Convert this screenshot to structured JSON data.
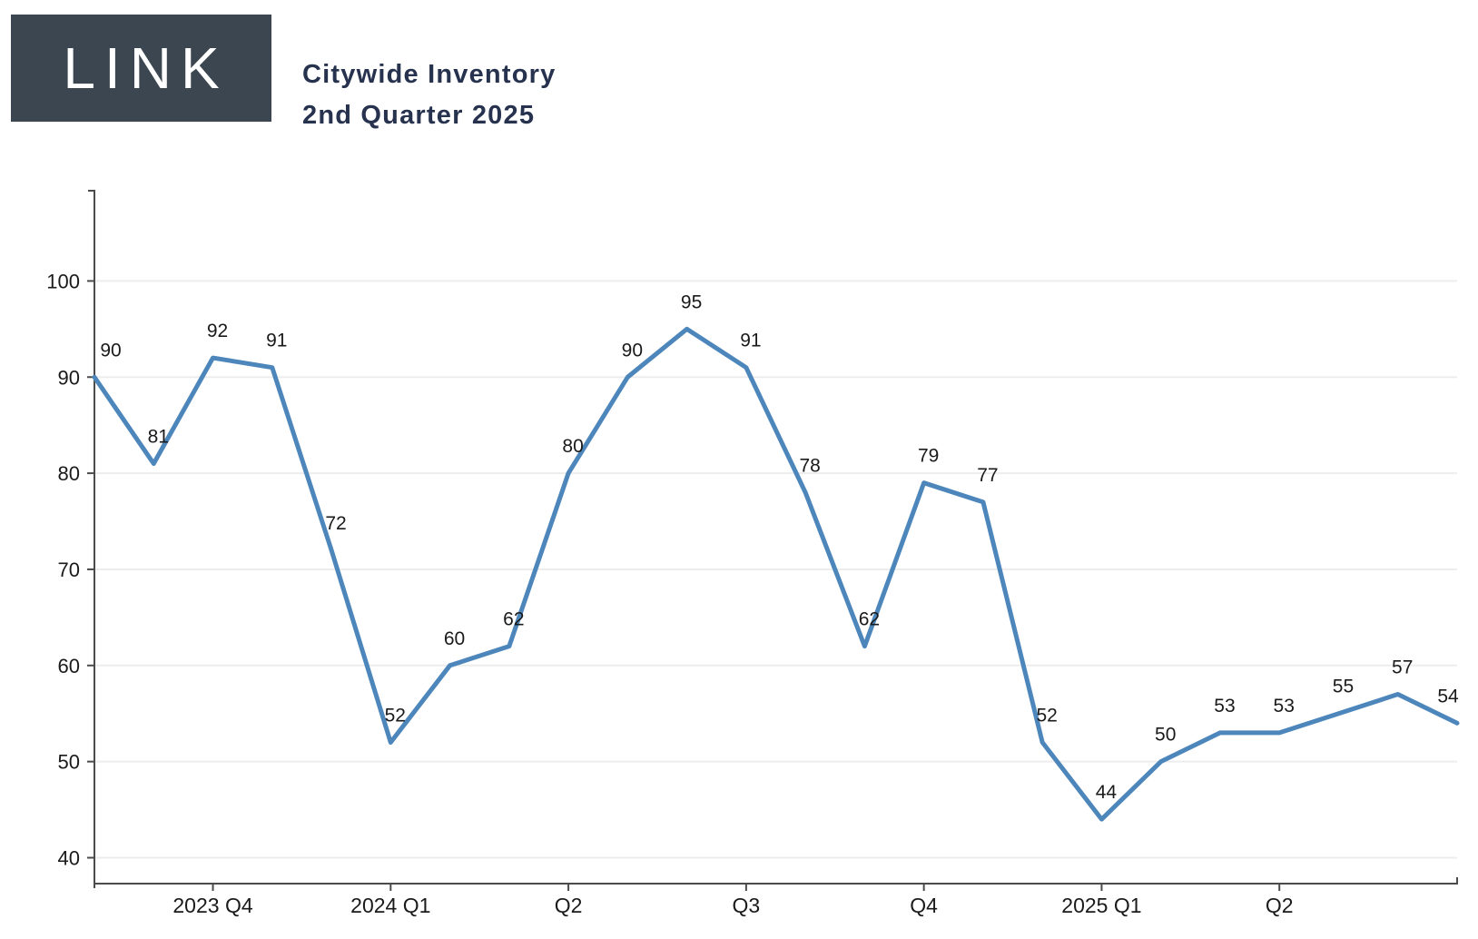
{
  "header": {
    "logo_text": "LINK",
    "title_line1": "Citywide Inventory",
    "title_line2": "2nd Quarter 2025"
  },
  "chart_data": {
    "type": "line",
    "title": "Citywide Inventory — 2nd Quarter 2025",
    "values": [
      90,
      81,
      92,
      91,
      72,
      52,
      60,
      62,
      80,
      90,
      95,
      91,
      78,
      62,
      79,
      77,
      52,
      44,
      50,
      53,
      53,
      55,
      57,
      54
    ],
    "point_labels": [
      "90",
      "81",
      "92",
      "91",
      "72",
      "52",
      "60",
      "62",
      "80",
      "90",
      "95",
      "91",
      "78",
      "62",
      "79",
      "77",
      "52",
      "44",
      "50",
      "53",
      "53",
      "55",
      "57",
      "54"
    ],
    "x_ticks": [
      {
        "index": 2,
        "label": "2023 Q4"
      },
      {
        "index": 5,
        "label": "2024 Q1"
      },
      {
        "index": 8,
        "label": "Q2"
      },
      {
        "index": 11,
        "label": "Q3"
      },
      {
        "index": 14,
        "label": "Q4"
      },
      {
        "index": 17,
        "label": "2025 Q1"
      },
      {
        "index": 20,
        "label": "Q2"
      }
    ],
    "y_ticks": [
      40,
      50,
      60,
      70,
      80,
      90,
      100
    ],
    "ylim": [
      37,
      110
    ],
    "grid": "horizontal-only",
    "legend": "none",
    "line_color": "#4d86bb",
    "axis_color": "#4b4b4b",
    "grid_color": "#ededed",
    "label_color": "#1a1a1a"
  }
}
